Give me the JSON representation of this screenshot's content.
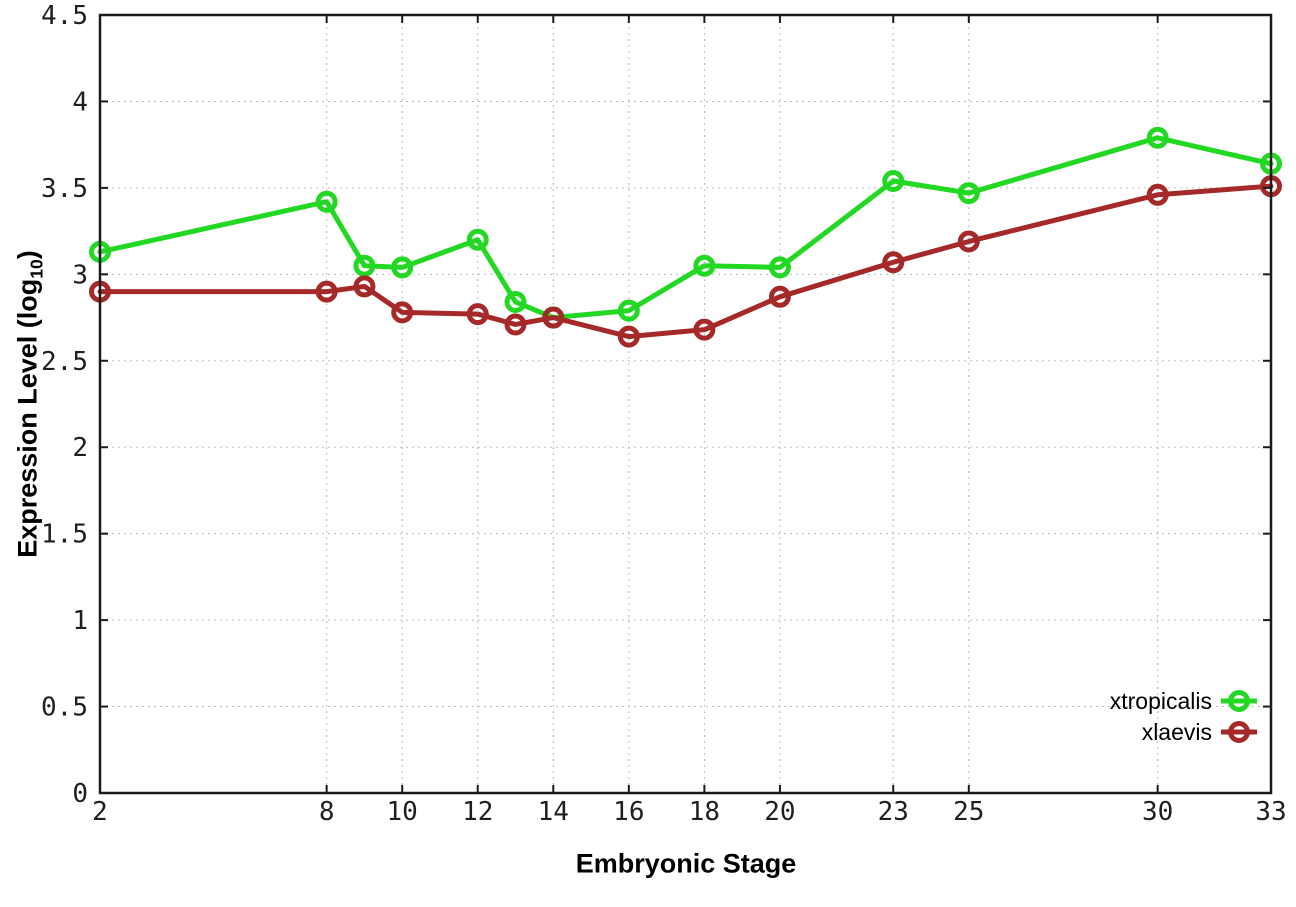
{
  "chart_data": {
    "type": "line",
    "xlabel": "Embryonic Stage",
    "ylabel": "Expression Level (log10)",
    "ylabel_parts": {
      "prefix": "Expression Level (log",
      "sub": "10",
      "suffix": ")"
    },
    "x_axis": {
      "min": 2,
      "max": 33,
      "ticks": [
        2,
        8,
        10,
        12,
        14,
        16,
        18,
        20,
        23,
        25,
        30,
        33
      ],
      "tick_labels": [
        "2",
        "8",
        "10",
        "12",
        "14",
        "16",
        "18",
        "20",
        "23",
        "25",
        "30",
        "33"
      ]
    },
    "y_axis": {
      "min": 0,
      "max": 4.5,
      "ticks": [
        0,
        0.5,
        1,
        1.5,
        2,
        2.5,
        3,
        3.5,
        4,
        4.5
      ],
      "tick_labels": [
        "0",
        "0.5",
        "1",
        "1.5",
        "2",
        "2.5",
        "3",
        "3.5",
        "4",
        "4.5"
      ]
    },
    "grid": true,
    "legend": {
      "position": "inside-bottom-right",
      "entries": [
        "xtropicalis",
        "xlaevis"
      ]
    },
    "colors": {
      "grid": "#bdbdbd",
      "border": "#1a1a1a",
      "text": "#000000"
    },
    "series": [
      {
        "name": "xtropicalis",
        "color": "#22d822",
        "marker": "open-circle",
        "x": [
          2,
          8,
          9,
          10,
          12,
          13,
          14,
          16,
          18,
          20,
          23,
          25,
          30,
          33
        ],
        "y": [
          3.13,
          3.42,
          3.05,
          3.04,
          3.2,
          2.84,
          2.75,
          2.79,
          3.05,
          3.04,
          3.54,
          3.47,
          3.79,
          3.64
        ]
      },
      {
        "name": "xlaevis",
        "color": "#a62929",
        "marker": "open-circle",
        "x": [
          2,
          8,
          9,
          10,
          12,
          13,
          14,
          16,
          18,
          20,
          23,
          25,
          30,
          33
        ],
        "y": [
          2.9,
          2.9,
          2.93,
          2.78,
          2.77,
          2.71,
          2.75,
          2.64,
          2.68,
          2.87,
          3.07,
          3.19,
          3.46,
          3.51
        ]
      }
    ]
  }
}
